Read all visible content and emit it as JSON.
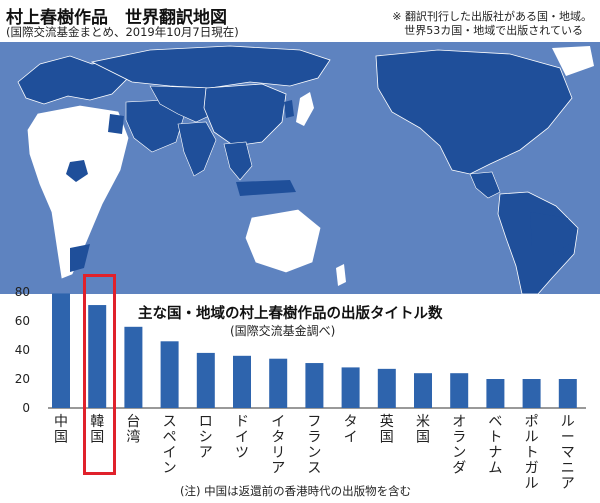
{
  "header": {
    "title": "村上春樹作品　世界翻訳地図",
    "subtitle": "(国際交流基金まとめ、2019年10月7日現在)",
    "note_line1": "※ 翻訳刊行した出版社がある国・地域。",
    "note_line2": "世界53カ国・地域で出版されている"
  },
  "colors": {
    "bar": "#2e64ad",
    "map_ocean": "#5e83c0",
    "map_land": "#ffffff",
    "map_highlight": "#1f4f9a",
    "highlight_box": "#e0212b"
  },
  "chart_data": {
    "type": "bar",
    "title": "主な国・地域の村上春樹作品の出版タイトル数",
    "subtitle": "(国際交流基金調べ)",
    "categories": [
      "中国",
      "韓国",
      "台湾",
      "スペイン",
      "ロシア",
      "ドイツ",
      "イタリア",
      "フランス",
      "タイ",
      "英国",
      "米国",
      "オランダ",
      "ベトナム",
      "ポルトガル",
      "ルーマニア"
    ],
    "values": [
      79,
      71,
      56,
      46,
      38,
      36,
      34,
      31,
      28,
      27,
      24,
      24,
      20,
      20,
      20
    ],
    "ylim": [
      0,
      80
    ],
    "yticks": [
      0,
      20,
      40,
      60,
      80
    ],
    "grid": false,
    "highlighted_category": "韓国",
    "footnote": "(注) 中国は返還前の香港時代の出版物を含む"
  }
}
